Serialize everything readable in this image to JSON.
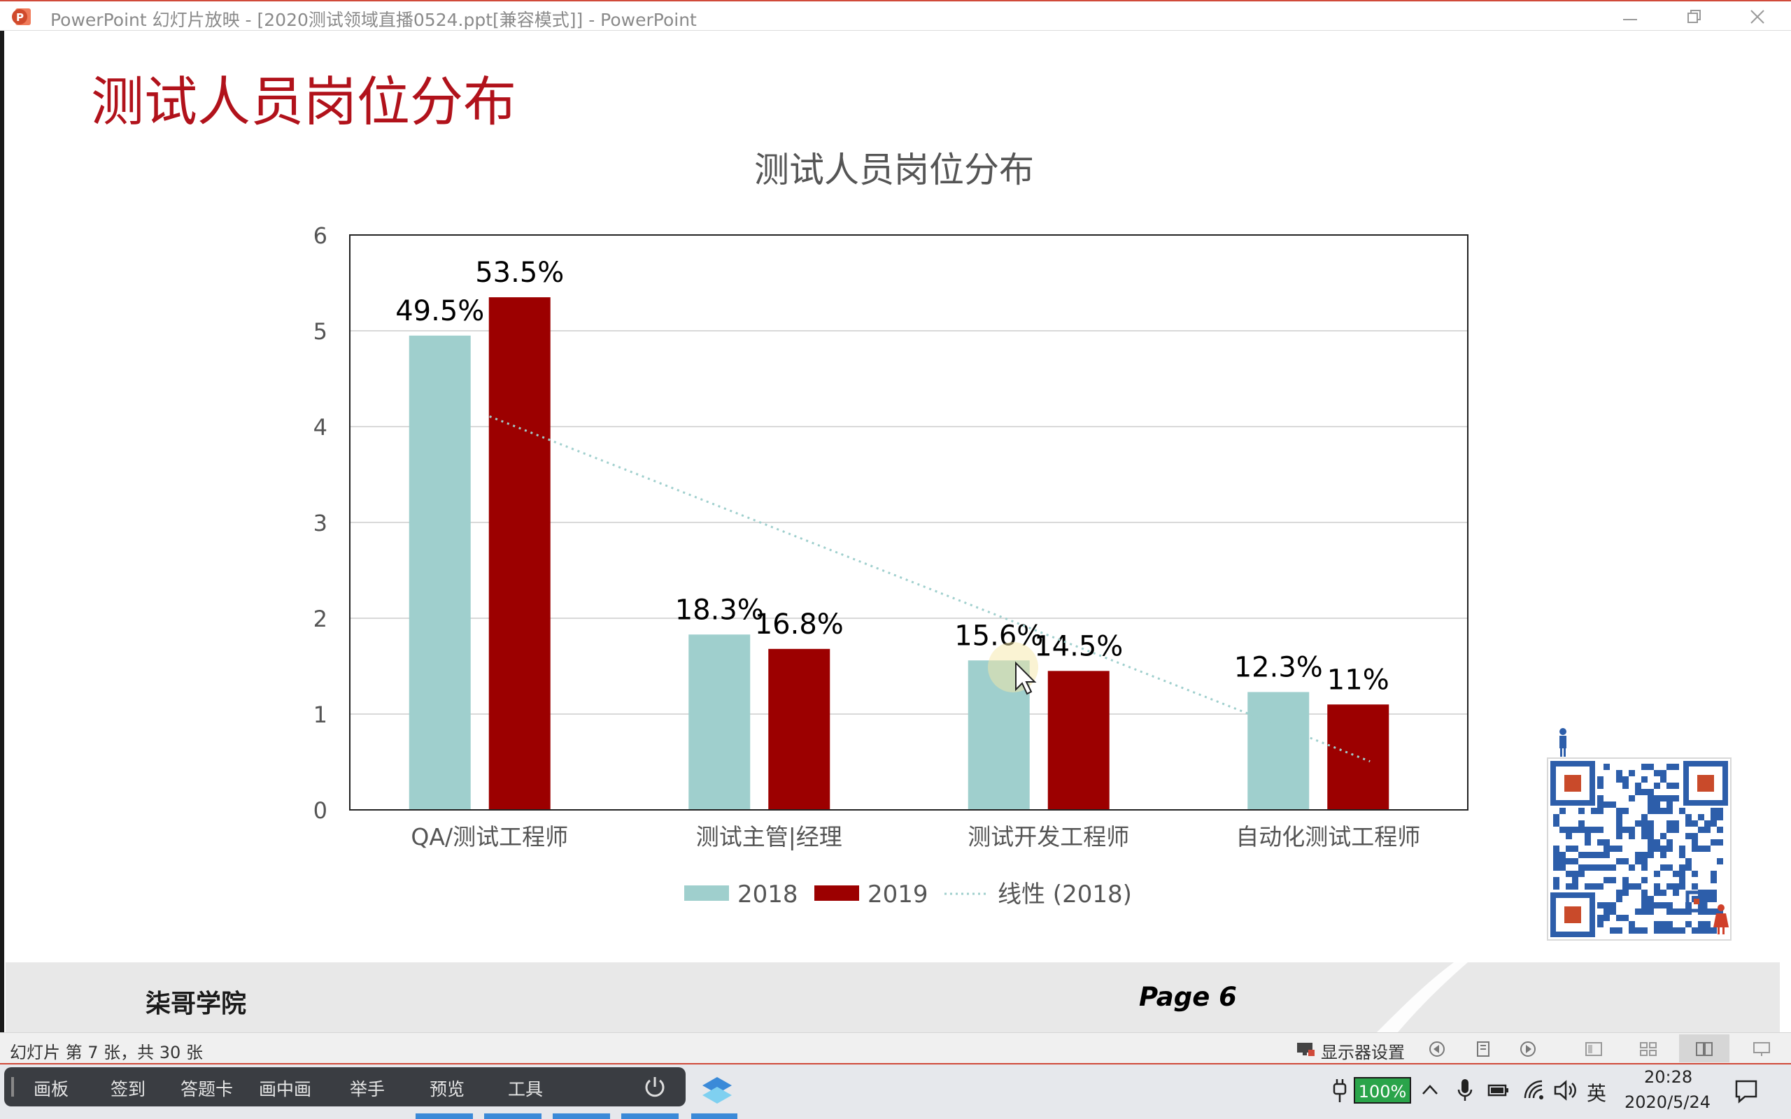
{
  "window": {
    "title": "PowerPoint 幻灯片放映 - [2020测试领域直播0524.ppt[兼容模式]] - PowerPoint",
    "controls": {
      "minimize": "minimize-icon",
      "restore": "restore-icon",
      "close": "close-icon"
    }
  },
  "slide": {
    "title": "测试人员岗位分布",
    "footer_left": "柒哥学院",
    "footer_right": "Page 6"
  },
  "chart_data": {
    "type": "bar",
    "title": "测试人员岗位分布",
    "categories": [
      "QA/测试工程师",
      "测试主管|经理",
      "测试开发工程师",
      "自动化测试工程师"
    ],
    "series": [
      {
        "name": "2018",
        "values": [
          4.95,
          1.83,
          1.56,
          1.23
        ],
        "labels": [
          "49.5%",
          "18.3%",
          "15.6%",
          "12.3%"
        ],
        "color": "#9fcfcd"
      },
      {
        "name": "2019",
        "values": [
          5.35,
          1.68,
          1.45,
          1.1
        ],
        "labels": [
          "53.5%",
          "16.8%",
          "14.5%",
          "11%"
        ],
        "color": "#9c0000"
      }
    ],
    "trendline": {
      "name": "线性 (2018)",
      "series": "2018",
      "color": "#9fcfcd"
    },
    "ylim": [
      0,
      6
    ],
    "yticks": [
      "0",
      "1",
      "2",
      "3",
      "4",
      "5",
      "6"
    ],
    "grid": true,
    "legend": "bottom"
  },
  "statusbar": {
    "slide_info": "幻灯片 第 7 张，共 30 张",
    "display_settings": "显示器设置"
  },
  "taskbar": {
    "tools": [
      "画板",
      "签到",
      "答题卡",
      "画中画",
      "举手",
      "预览",
      "工具"
    ],
    "battery": "100%",
    "ime": "英",
    "time": "20:28",
    "date": "2020/5/24"
  }
}
